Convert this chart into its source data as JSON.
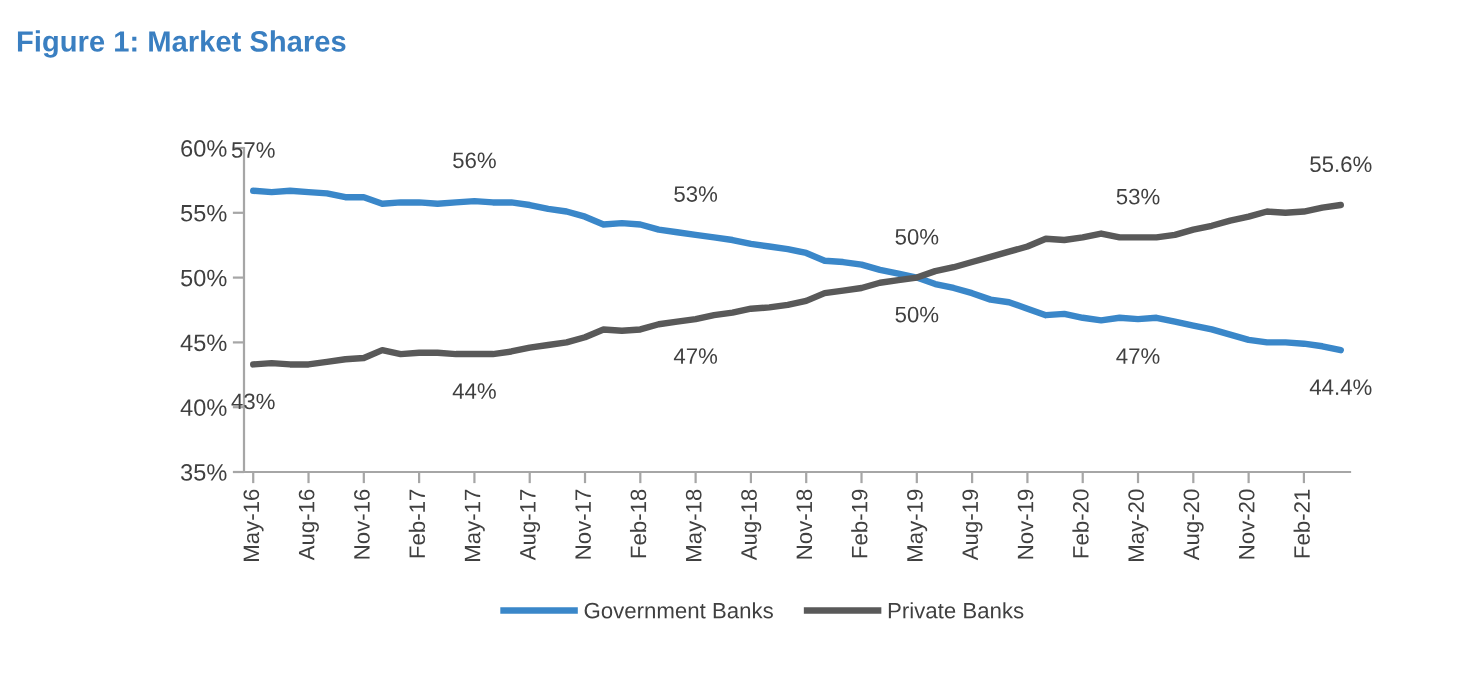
{
  "chart_data": {
    "type": "line",
    "title": "Figure 1: Market Shares",
    "categories": [
      "May-16",
      null,
      null,
      "Aug-16",
      null,
      null,
      "Nov-16",
      null,
      null,
      "Feb-17",
      null,
      null,
      "May-17",
      null,
      null,
      "Aug-17",
      null,
      null,
      "Nov-17",
      null,
      null,
      "Feb-18",
      null,
      null,
      "May-18",
      null,
      null,
      "Aug-18",
      null,
      null,
      "Nov-18",
      null,
      null,
      "Feb-19",
      null,
      null,
      "May-19",
      null,
      null,
      "Aug-19",
      null,
      null,
      "Nov-19",
      null,
      null,
      "Feb-20",
      null,
      null,
      "May-20",
      null,
      null,
      "Aug-20",
      null,
      null,
      "Nov-20",
      null,
      null,
      "Feb-21",
      null,
      null
    ],
    "series": [
      {
        "name": "Government Banks",
        "color": "#3a87c9",
        "values": [
          56.7,
          56.6,
          56.7,
          56.6,
          56.5,
          56.2,
          56.2,
          55.7,
          55.8,
          55.8,
          55.7,
          55.8,
          55.9,
          55.8,
          55.8,
          55.6,
          55.3,
          55.1,
          54.7,
          54.1,
          54.2,
          54.1,
          53.7,
          53.5,
          53.3,
          53.1,
          52.9,
          52.6,
          52.4,
          52.2,
          51.9,
          51.3,
          51.2,
          51.0,
          50.6,
          50.3,
          50.0,
          49.5,
          49.2,
          48.8,
          48.3,
          48.1,
          47.6,
          47.1,
          47.2,
          46.9,
          46.7,
          46.9,
          46.8,
          46.9,
          46.6,
          46.3,
          46.0,
          45.6,
          45.2,
          45.0,
          45.0,
          44.9,
          44.7,
          44.4
        ],
        "value_labels": [
          "57%",
          null,
          null,
          null,
          null,
          null,
          null,
          null,
          null,
          null,
          null,
          null,
          "56%",
          null,
          null,
          null,
          null,
          null,
          null,
          null,
          null,
          null,
          null,
          null,
          "53%",
          null,
          null,
          null,
          null,
          null,
          null,
          null,
          null,
          null,
          null,
          null,
          "50%",
          null,
          null,
          null,
          null,
          null,
          null,
          null,
          null,
          null,
          null,
          null,
          "47%",
          null,
          null,
          null,
          null,
          null,
          null,
          null,
          null,
          null,
          null,
          "44.4%"
        ]
      },
      {
        "name": "Private Banks",
        "color": "#595959",
        "values": [
          43.3,
          43.4,
          43.3,
          43.3,
          43.5,
          43.7,
          43.8,
          44.4,
          44.1,
          44.2,
          44.2,
          44.1,
          44.1,
          44.1,
          44.3,
          44.6,
          44.8,
          45.0,
          45.4,
          46.0,
          45.9,
          46.0,
          46.4,
          46.6,
          46.8,
          47.1,
          47.3,
          47.6,
          47.7,
          47.9,
          48.2,
          48.8,
          49.0,
          49.2,
          49.6,
          49.8,
          50.0,
          50.5,
          50.8,
          51.2,
          51.6,
          52.0,
          52.4,
          53.0,
          52.9,
          53.1,
          53.4,
          53.1,
          53.1,
          53.1,
          53.3,
          53.7,
          54.0,
          54.4,
          54.7,
          55.1,
          55.0,
          55.1,
          55.4,
          55.6
        ],
        "value_labels": [
          "43%",
          null,
          null,
          null,
          null,
          null,
          null,
          null,
          null,
          null,
          null,
          null,
          "44%",
          null,
          null,
          null,
          null,
          null,
          null,
          null,
          null,
          null,
          null,
          null,
          "47%",
          null,
          null,
          null,
          null,
          null,
          null,
          null,
          null,
          null,
          null,
          null,
          "50%",
          null,
          null,
          null,
          null,
          null,
          null,
          null,
          null,
          null,
          null,
          null,
          "53%",
          null,
          null,
          null,
          null,
          null,
          null,
          null,
          null,
          null,
          null,
          "55.6%"
        ]
      }
    ],
    "ylim": [
      35,
      60
    ],
    "yticks": [
      {
        "value": 35,
        "label": "35%"
      },
      {
        "value": 40,
        "label": "40%"
      },
      {
        "value": 45,
        "label": "45%"
      },
      {
        "value": 50,
        "label": "50%"
      },
      {
        "value": 55,
        "label": "55%"
      },
      {
        "value": 60,
        "label": "60%"
      }
    ],
    "line_style": "solid",
    "legend": "bottom"
  }
}
